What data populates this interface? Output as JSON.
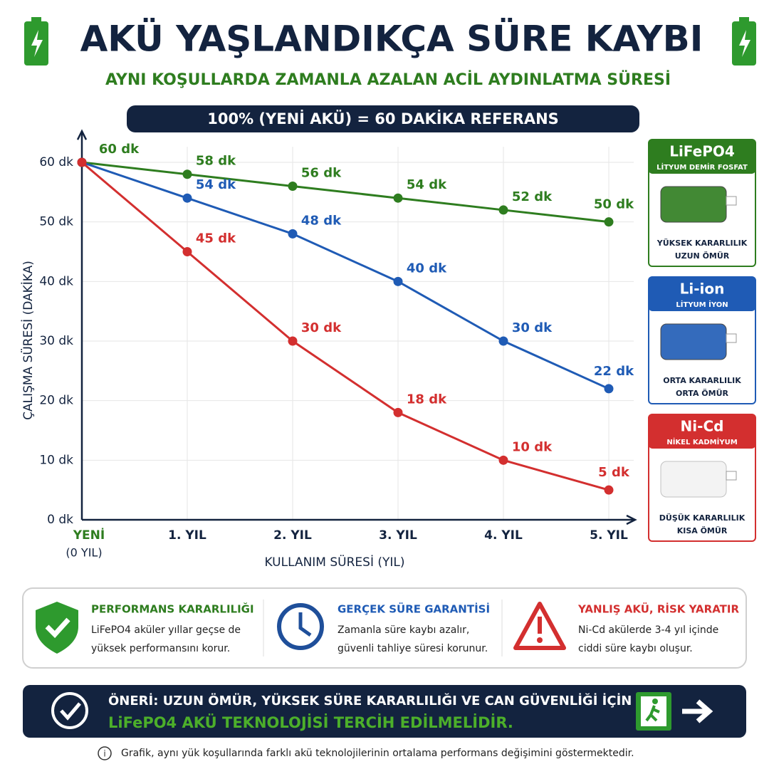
{
  "header": {
    "title": "AKÜ YAŞLANDIKÇA SÜRE KAYBI",
    "subtitle": "AYNI KOŞULLARDA ZAMANLA AZALAN ACİL AYDINLATMA SÜRESİ",
    "reference": "100% (YENİ AKÜ) = 60 DAKİKA REFERANS"
  },
  "chart_data": {
    "type": "line",
    "categories": [
      "YENİ",
      "1. YIL",
      "2. YIL",
      "3. YIL",
      "4. YIL",
      "5. YIL"
    ],
    "first_category_note": "(0 YIL)",
    "x_label": "KULLANIM SÜRESİ (YIL)",
    "y_label": "ÇALIŞMA SÜRESİ (DAKİKA)",
    "ylim": [
      0,
      65
    ],
    "yticks": [
      {
        "value": 0,
        "label": "0 dk"
      },
      {
        "value": 10,
        "label": "10 dk"
      },
      {
        "value": 20,
        "label": "20 dk"
      },
      {
        "value": 30,
        "label": "30 dk"
      },
      {
        "value": 40,
        "label": "40 dk"
      },
      {
        "value": 50,
        "label": "50 dk"
      },
      {
        "value": 60,
        "label": "60 dk"
      }
    ],
    "grid": true,
    "series": [
      {
        "name": "LiFePO4",
        "subtitle": "LİTYUM DEMİR FOSFAT",
        "notes": [
          "YÜKSEK KARARLILIK",
          "UZUN ÖMÜR"
        ],
        "color": "#2e7d1f",
        "values": [
          60,
          58,
          56,
          54,
          52,
          50
        ],
        "value_labels": [
          "60 dk",
          "58 dk",
          "56 dk",
          "54 dk",
          "52 dk",
          "50 dk"
        ]
      },
      {
        "name": "Li-ion",
        "subtitle": "LİTYUM İYON",
        "notes": [
          "ORTA KARARLILIK",
          "ORTA ÖMÜR"
        ],
        "color": "#1f5bb5",
        "values": [
          60,
          54,
          48,
          40,
          30,
          22
        ],
        "value_labels": [
          null,
          "54 dk",
          "48 dk",
          "40 dk",
          "30 dk",
          "22 dk"
        ]
      },
      {
        "name": "Ni-Cd",
        "subtitle": "NİKEL KADMİYUM",
        "notes": [
          "DÜŞÜK KARARLILIK",
          "KISA ÖMÜR"
        ],
        "color": "#d32f2f",
        "values": [
          60,
          45,
          30,
          18,
          10,
          5
        ],
        "value_labels": [
          null,
          "45 dk",
          "30 dk",
          "18 dk",
          "10 dk",
          "5 dk"
        ]
      }
    ]
  },
  "features": [
    {
      "title": "PERFORMANS KARARLILIĞI",
      "lines": [
        "LiFePO4 aküler yıllar geçse de",
        "yüksek performansını korur."
      ]
    },
    {
      "title": "GERÇEK SÜRE GARANTİSİ",
      "lines": [
        "Zamanla süre kaybı azalır,",
        "güvenli tahliye süresi korunur."
      ]
    },
    {
      "title": "YANLIŞ AKÜ, RİSK YARATIR",
      "lines": [
        "Ni-Cd akülerde 3-4 yıl içinde",
        "ciddi süre kaybı oluşur."
      ]
    }
  ],
  "recommendation": {
    "line1": "ÖNERİ: UZUN ÖMÜR, YÜKSEK SÜRE KARARLILIĞI VE CAN GÜVENLİĞİ İÇİN",
    "line2": "LiFePO4 AKÜ TEKNOLOJİSİ TERCİH EDİLMELİDİR."
  },
  "footnote": "Grafik, aynı yük koşullarında farklı akü teknolojilerinin ortalama performans değişimini göstermektedir."
}
